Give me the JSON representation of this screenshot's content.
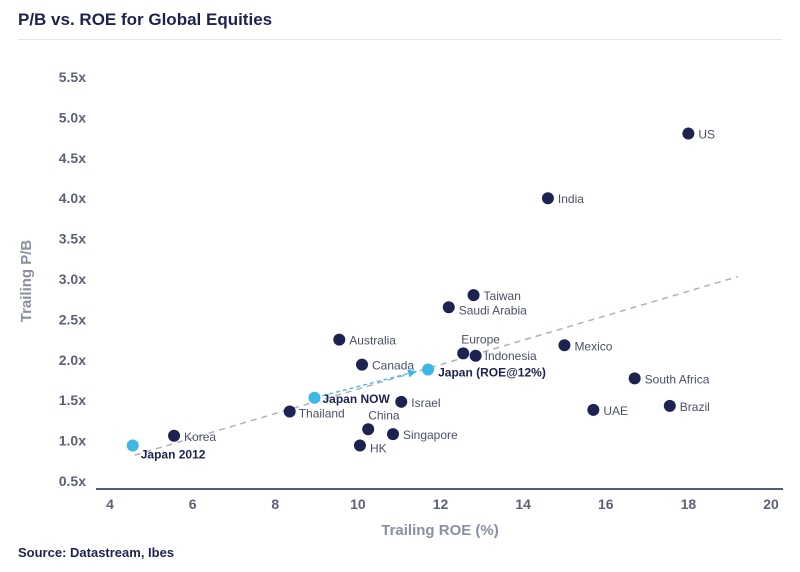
{
  "title": "P/B vs. ROE for Global Equities",
  "source": "Source: Datastream, Ibes",
  "chart_data": {
    "type": "scatter",
    "title": "P/B vs. ROE for Global Equities",
    "xlabel": "Trailing ROE (%)",
    "ylabel": "Trailing P/B",
    "xlim": [
      4,
      20
    ],
    "ylim": [
      0.5,
      5.5
    ],
    "xticks": [
      4,
      6,
      8,
      10,
      12,
      14,
      16,
      18,
      20
    ],
    "yticks": [
      0.5,
      1.0,
      1.5,
      2.0,
      2.5,
      3.0,
      3.5,
      4.0,
      4.5,
      5.0,
      5.5
    ],
    "ytick_labels": [
      "0.5x",
      "1.0x",
      "1.5x",
      "2.0x",
      "2.5x",
      "3.0x",
      "3.5x",
      "4.0x",
      "4.5x",
      "5.0x",
      "5.5x"
    ],
    "grid": false,
    "colors": {
      "markets": "#1d2350",
      "japan": "#3db7e4",
      "trend": "#aab2c2",
      "axis": "#1d2350"
    },
    "points": [
      {
        "label": "US",
        "x": 18.0,
        "y": 4.8,
        "group": "market",
        "bold": false
      },
      {
        "label": "India",
        "x": 14.6,
        "y": 4.0,
        "group": "market",
        "bold": false
      },
      {
        "label": "Taiwan",
        "x": 12.8,
        "y": 2.8,
        "group": "market",
        "bold": false
      },
      {
        "label": "Saudi Arabia",
        "x": 12.2,
        "y": 2.65,
        "group": "market",
        "bold": false
      },
      {
        "label": "Australia",
        "x": 9.55,
        "y": 2.25,
        "group": "market",
        "bold": false
      },
      {
        "label": "Mexico",
        "x": 15.0,
        "y": 2.18,
        "group": "market",
        "bold": false
      },
      {
        "label": "Europe",
        "x": 12.55,
        "y": 2.08,
        "group": "market",
        "bold": false
      },
      {
        "label": "Indonesia",
        "x": 12.85,
        "y": 2.05,
        "group": "market",
        "bold": false
      },
      {
        "label": "Canada",
        "x": 10.1,
        "y": 1.94,
        "group": "market",
        "bold": false
      },
      {
        "label": "South Africa",
        "x": 16.7,
        "y": 1.77,
        "group": "market",
        "bold": false
      },
      {
        "label": "Israel",
        "x": 11.05,
        "y": 1.48,
        "group": "market",
        "bold": false
      },
      {
        "label": "Brazil",
        "x": 17.55,
        "y": 1.43,
        "group": "market",
        "bold": false
      },
      {
        "label": "UAE",
        "x": 15.7,
        "y": 1.38,
        "group": "market",
        "bold": false
      },
      {
        "label": "Thailand",
        "x": 8.35,
        "y": 1.36,
        "group": "market",
        "bold": false
      },
      {
        "label": "China",
        "x": 10.25,
        "y": 1.14,
        "group": "market",
        "bold": false
      },
      {
        "label": "Singapore",
        "x": 10.85,
        "y": 1.08,
        "group": "market",
        "bold": false
      },
      {
        "label": "Korea",
        "x": 5.55,
        "y": 1.06,
        "group": "market",
        "bold": false
      },
      {
        "label": "HK",
        "x": 10.05,
        "y": 0.94,
        "group": "market",
        "bold": false
      },
      {
        "label": "Japan 2012",
        "x": 4.55,
        "y": 0.94,
        "group": "japan",
        "bold": true
      },
      {
        "label": "Japan NOW",
        "x": 8.95,
        "y": 1.53,
        "group": "japan",
        "bold": true
      },
      {
        "label": "Japan (ROE@12%)",
        "x": 11.7,
        "y": 1.88,
        "group": "japan",
        "bold": true
      }
    ],
    "trendline": {
      "x": [
        4.6,
        19.2
      ],
      "y": [
        0.82,
        3.03
      ],
      "style": "dashed"
    },
    "arrow": {
      "from": "Japan NOW",
      "to": "Japan (ROE@12%)"
    }
  }
}
